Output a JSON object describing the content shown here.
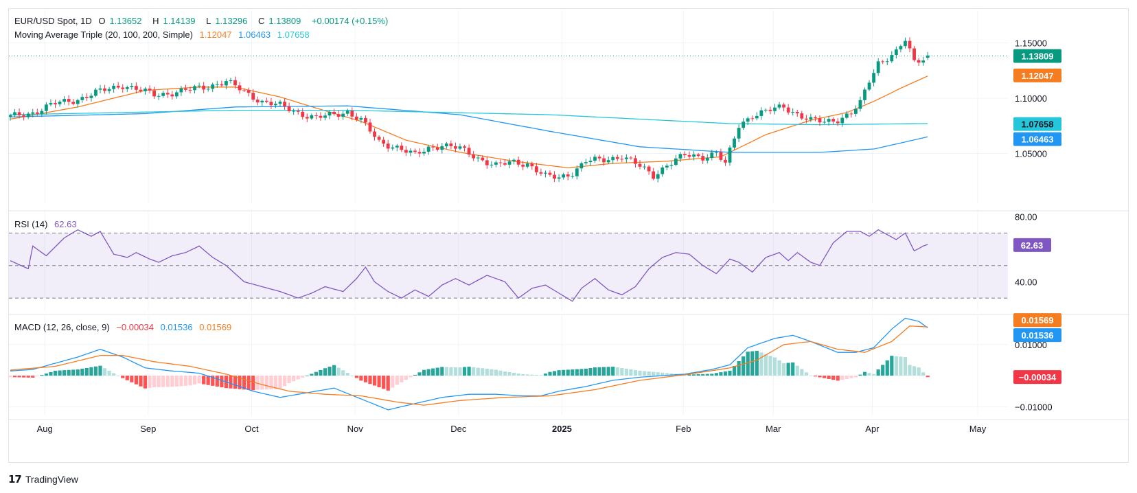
{
  "header": {
    "symbol": "EUR/USD Spot, 1D",
    "o_label": "O",
    "o_value": "1.13652",
    "h_label": "H",
    "h_value": "1.14139",
    "l_label": "L",
    "l_value": "1.13296",
    "c_label": "C",
    "c_value": "1.13809",
    "change": "+0.00174 (+0.15%)",
    "ma_title": "Moving Average Triple (20, 100, 200, Simple)",
    "ma20_value": "1.12047",
    "ma100_value": "1.06463",
    "ma200_value": "1.07658",
    "rsi_title": "RSI (14)",
    "rsi_value": "62.63",
    "macd_title": "MACD (12, 26, close, 9)",
    "macd_hist": "−0.00034",
    "macd_line": "0.01536",
    "macd_signal": "0.01569"
  },
  "footer": {
    "brand": "TradingView"
  },
  "colors": {
    "up": "#089981",
    "down": "#f23645",
    "ma20": "#f57c1f",
    "ma100": "#2196f3",
    "ma200": "#26c6da",
    "rsi": "#7e57c2",
    "macd": "#2196f3",
    "signal": "#f57c1f",
    "hist_up_strong": "#26a69a",
    "hist_up_weak": "#b2dfdb",
    "hist_down_strong": "#ff5252",
    "hist_down_weak": "#ffcdd2"
  },
  "chart_data": [
    {
      "type": "candlestick",
      "title": "EUR/USD Spot, 1D",
      "x_tick_labels": [
        "Aug",
        "Sep",
        "Oct",
        "Nov",
        "Dec",
        "2025",
        "Feb",
        "Mar",
        "Apr",
        "May"
      ],
      "y_tick_labels": [
        "1.15000",
        "1.10000",
        "1.05000"
      ],
      "ylim": [
        1.005,
        1.162
      ],
      "price_labels": [
        "1.13809",
        "1.12047",
        "1.07658",
        "1.06463"
      ],
      "last_close": 1.13809,
      "close_anchors": [
        [
          0,
          1.083
        ],
        [
          5,
          1.087
        ],
        [
          10,
          1.095
        ],
        [
          15,
          1.099
        ],
        [
          20,
          1.106
        ],
        [
          25,
          1.112
        ],
        [
          28,
          1.108
        ],
        [
          32,
          1.103
        ],
        [
          38,
          1.106
        ],
        [
          43,
          1.11
        ],
        [
          48,
          1.115
        ],
        [
          51,
          1.108
        ],
        [
          56,
          1.097
        ],
        [
          60,
          1.093
        ],
        [
          64,
          1.087
        ],
        [
          68,
          1.082
        ],
        [
          72,
          1.085
        ],
        [
          75,
          1.088
        ],
        [
          78,
          1.08
        ],
        [
          82,
          1.06
        ],
        [
          86,
          1.056
        ],
        [
          90,
          1.048
        ],
        [
          93,
          1.055
        ],
        [
          96,
          1.058
        ],
        [
          100,
          1.054
        ],
        [
          104,
          1.046
        ],
        [
          108,
          1.039
        ],
        [
          112,
          1.042
        ],
        [
          115,
          1.041
        ],
        [
          119,
          1.029
        ],
        [
          122,
          1.028
        ],
        [
          125,
          1.033
        ],
        [
          128,
          1.043
        ],
        [
          132,
          1.044
        ],
        [
          136,
          1.048
        ],
        [
          140,
          1.038
        ],
        [
          143,
          1.03
        ],
        [
          146,
          1.04
        ],
        [
          150,
          1.048
        ],
        [
          154,
          1.047
        ],
        [
          157,
          1.051
        ],
        [
          159,
          1.04
        ],
        [
          162,
          1.075
        ],
        [
          165,
          1.085
        ],
        [
          168,
          1.088
        ],
        [
          172,
          1.092
        ],
        [
          175,
          1.086
        ],
        [
          178,
          1.08
        ],
        [
          181,
          1.078
        ],
        [
          184,
          1.081
        ],
        [
          187,
          1.087
        ],
        [
          189,
          1.095
        ],
        [
          191,
          1.115
        ],
        [
          193,
          1.132
        ],
        [
          195,
          1.137
        ],
        [
          197,
          1.142
        ],
        [
          199,
          1.152
        ],
        [
          201,
          1.132
        ],
        [
          203,
          1.136
        ],
        [
          204,
          1.138
        ]
      ],
      "series": [
        {
          "name": "20",
          "values": [
            [
              0,
              1.081
            ],
            [
              15,
              1.092
            ],
            [
              30,
              1.107
            ],
            [
              42,
              1.11
            ],
            [
              50,
              1.11
            ],
            [
              60,
              1.101
            ],
            [
              68,
              1.091
            ],
            [
              78,
              1.079
            ],
            [
              88,
              1.062
            ],
            [
              100,
              1.051
            ],
            [
              112,
              1.043
            ],
            [
              124,
              1.037
            ],
            [
              134,
              1.041
            ],
            [
              146,
              1.043
            ],
            [
              158,
              1.047
            ],
            [
              168,
              1.067
            ],
            [
              178,
              1.08
            ],
            [
              186,
              1.087
            ],
            [
              192,
              1.097
            ],
            [
              198,
              1.109
            ],
            [
              204,
              1.12
            ]
          ]
        },
        {
          "name": "100",
          "values": [
            [
              0,
              1.083
            ],
            [
              30,
              1.086
            ],
            [
              50,
              1.092
            ],
            [
              75,
              1.093
            ],
            [
              100,
              1.085
            ],
            [
              120,
              1.07
            ],
            [
              140,
              1.056
            ],
            [
              160,
              1.051
            ],
            [
              180,
              1.051
            ],
            [
              192,
              1.054
            ],
            [
              204,
              1.065
            ]
          ]
        },
        {
          "name": "200",
          "values": [
            [
              0,
              1.085
            ],
            [
              50,
              1.089
            ],
            [
              75,
              1.089
            ],
            [
              120,
              1.085
            ],
            [
              140,
              1.081
            ],
            [
              160,
              1.077
            ],
            [
              180,
              1.076
            ],
            [
              204,
              1.077
            ]
          ]
        }
      ]
    },
    {
      "type": "line",
      "title": "RSI (14)",
      "y_tick_labels": [
        "80.00",
        "40.00"
      ],
      "ylim": [
        22,
        82
      ],
      "bands": [
        70,
        50,
        30
      ],
      "last_value": 62.63,
      "values": [
        [
          0,
          53
        ],
        [
          4,
          48
        ],
        [
          5,
          62
        ],
        [
          8,
          56
        ],
        [
          12,
          67
        ],
        [
          15,
          72
        ],
        [
          18,
          68
        ],
        [
          20,
          71
        ],
        [
          23,
          57
        ],
        [
          26,
          55
        ],
        [
          28,
          58
        ],
        [
          31,
          54
        ],
        [
          33,
          52
        ],
        [
          36,
          56
        ],
        [
          39,
          58
        ],
        [
          42,
          62
        ],
        [
          45,
          55
        ],
        [
          48,
          50
        ],
        [
          52,
          40
        ],
        [
          56,
          37
        ],
        [
          60,
          34
        ],
        [
          64,
          30
        ],
        [
          67,
          33
        ],
        [
          70,
          37
        ],
        [
          74,
          34
        ],
        [
          77,
          42
        ],
        [
          79,
          49
        ],
        [
          81,
          40
        ],
        [
          84,
          34
        ],
        [
          87,
          30
        ],
        [
          90,
          35
        ],
        [
          93,
          31
        ],
        [
          96,
          38
        ],
        [
          99,
          42
        ],
        [
          102,
          38
        ],
        [
          106,
          44
        ],
        [
          110,
          40
        ],
        [
          113,
          30
        ],
        [
          116,
          36
        ],
        [
          119,
          38
        ],
        [
          122,
          33
        ],
        [
          125,
          28
        ],
        [
          127,
          36
        ],
        [
          130,
          42
        ],
        [
          133,
          35
        ],
        [
          136,
          32
        ],
        [
          139,
          37
        ],
        [
          142,
          48
        ],
        [
          145,
          55
        ],
        [
          148,
          58
        ],
        [
          151,
          57
        ],
        [
          154,
          50
        ],
        [
          157,
          45
        ],
        [
          160,
          54
        ],
        [
          162,
          52
        ],
        [
          165,
          46
        ],
        [
          168,
          55
        ],
        [
          171,
          58
        ],
        [
          173,
          53
        ],
        [
          175,
          58
        ],
        [
          178,
          52
        ],
        [
          180,
          50
        ],
        [
          183,
          64
        ],
        [
          186,
          71
        ],
        [
          189,
          71
        ],
        [
          191,
          68
        ],
        [
          193,
          72
        ],
        [
          195,
          69
        ],
        [
          197,
          66
        ],
        [
          199,
          70
        ],
        [
          201,
          59
        ],
        [
          203,
          62
        ],
        [
          204,
          63
        ]
      ]
    },
    {
      "type": "bar+line",
      "title": "MACD (12, 26, close, 9)",
      "y_tick_labels": [
        "0.01000",
        "−0.01000"
      ],
      "ylim": [
        -0.0128,
        0.0186
      ],
      "series": [
        {
          "name": "MACD",
          "values": [
            [
              0,
              0.0015
            ],
            [
              5,
              0.002
            ],
            [
              10,
              0.004
            ],
            [
              15,
              0.006
            ],
            [
              20,
              0.0085
            ],
            [
              25,
              0.006
            ],
            [
              30,
              0.0025
            ],
            [
              36,
              0.0015
            ],
            [
              42,
              0.0008
            ],
            [
              48,
              -0.002
            ],
            [
              54,
              -0.005
            ],
            [
              60,
              -0.007
            ],
            [
              66,
              -0.0055
            ],
            [
              72,
              -0.004
            ],
            [
              78,
              -0.0075
            ],
            [
              84,
              -0.011
            ],
            [
              90,
              -0.009
            ],
            [
              96,
              -0.007
            ],
            [
              102,
              -0.006
            ],
            [
              108,
              -0.006
            ],
            [
              114,
              -0.0065
            ],
            [
              118,
              -0.0065
            ],
            [
              122,
              -0.005
            ],
            [
              128,
              -0.0035
            ],
            [
              134,
              -0.0015
            ],
            [
              140,
              -0.0005
            ],
            [
              150,
              0.0005
            ],
            [
              156,
              0.002
            ],
            [
              160,
              0.0035
            ],
            [
              164,
              0.009
            ],
            [
              170,
              0.012
            ],
            [
              174,
              0.013
            ],
            [
              178,
              0.011
            ],
            [
              184,
              0.0075
            ],
            [
              188,
              0.0075
            ],
            [
              192,
              0.009
            ],
            [
              196,
              0.015
            ],
            [
              199,
              0.0185
            ],
            [
              202,
              0.0175
            ],
            [
              204,
              0.0154
            ]
          ]
        },
        {
          "name": "Signal",
          "values": [
            [
              0,
              0.0018
            ],
            [
              10,
              0.003
            ],
            [
              20,
              0.0065
            ],
            [
              25,
              0.0065
            ],
            [
              32,
              0.0045
            ],
            [
              40,
              0.003
            ],
            [
              48,
              0.0005
            ],
            [
              55,
              -0.0025
            ],
            [
              62,
              -0.005
            ],
            [
              70,
              -0.006
            ],
            [
              78,
              -0.0065
            ],
            [
              86,
              -0.0085
            ],
            [
              92,
              -0.0095
            ],
            [
              100,
              -0.008
            ],
            [
              110,
              -0.007
            ],
            [
              120,
              -0.0065
            ],
            [
              130,
              -0.0045
            ],
            [
              140,
              -0.0015
            ],
            [
              150,
              0.0003
            ],
            [
              160,
              0.0025
            ],
            [
              166,
              0.005
            ],
            [
              172,
              0.01
            ],
            [
              178,
              0.011
            ],
            [
              184,
              0.0085
            ],
            [
              190,
              0.0075
            ],
            [
              196,
              0.011
            ],
            [
              200,
              0.016
            ],
            [
              204,
              0.0157
            ]
          ]
        }
      ],
      "histogram_note": "histogram = MACD − Signal, last value −0.00034"
    }
  ]
}
